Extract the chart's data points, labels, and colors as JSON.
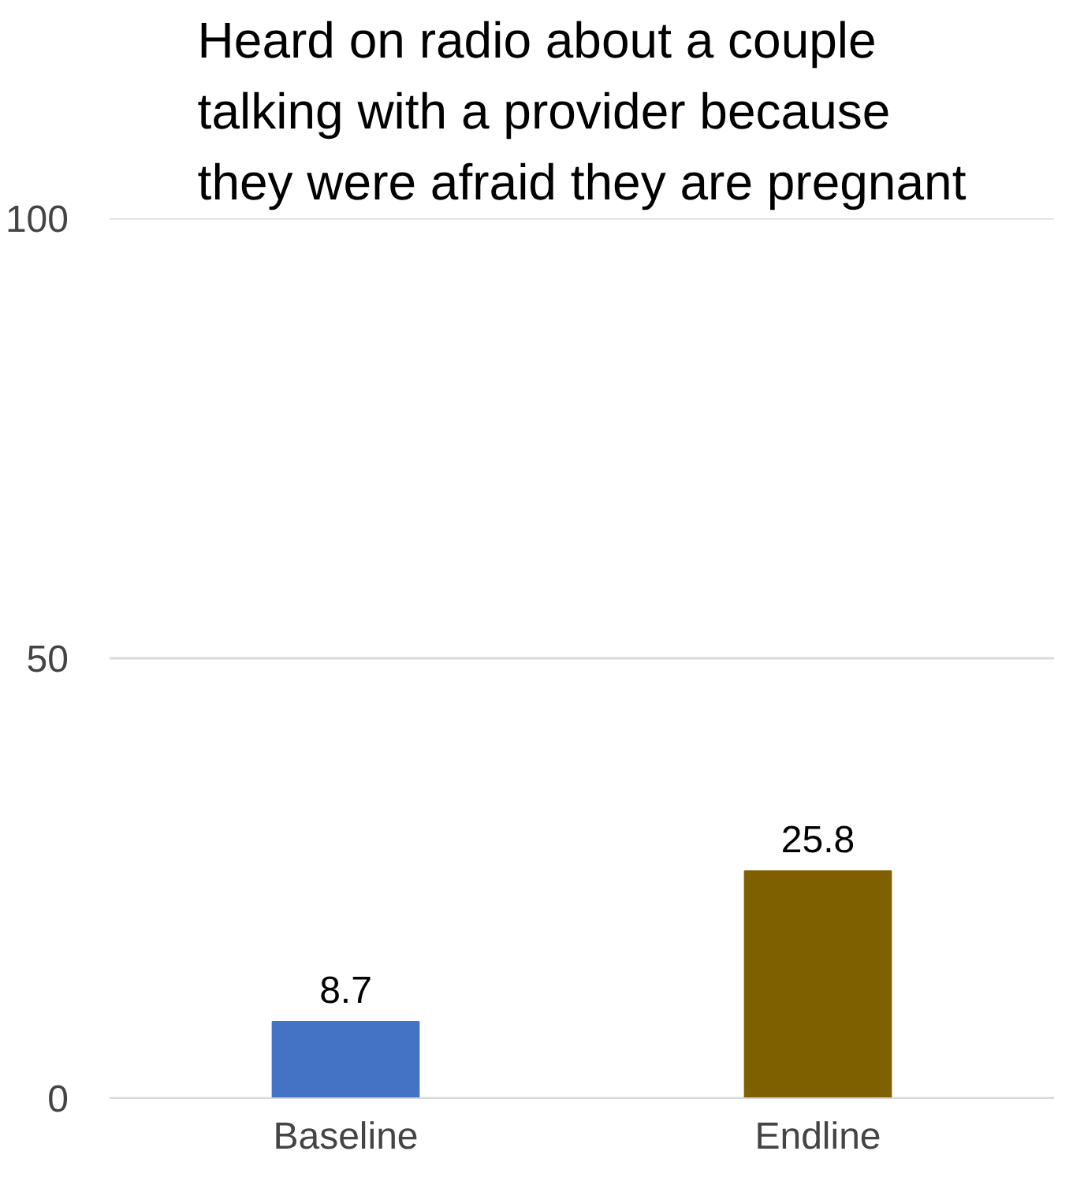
{
  "chart_data": {
    "type": "bar",
    "title": "Heard on radio about a couple talking with a provider because they were afraid they are pregnant",
    "categories": [
      "Baseline",
      "Endline"
    ],
    "values": [
      8.7,
      25.8
    ],
    "colors": [
      "#4472c4",
      "#7f6000"
    ],
    "ylim": [
      0,
      100
    ],
    "yticks": [
      0,
      50,
      100
    ],
    "grid": "y",
    "data_labels": true
  }
}
